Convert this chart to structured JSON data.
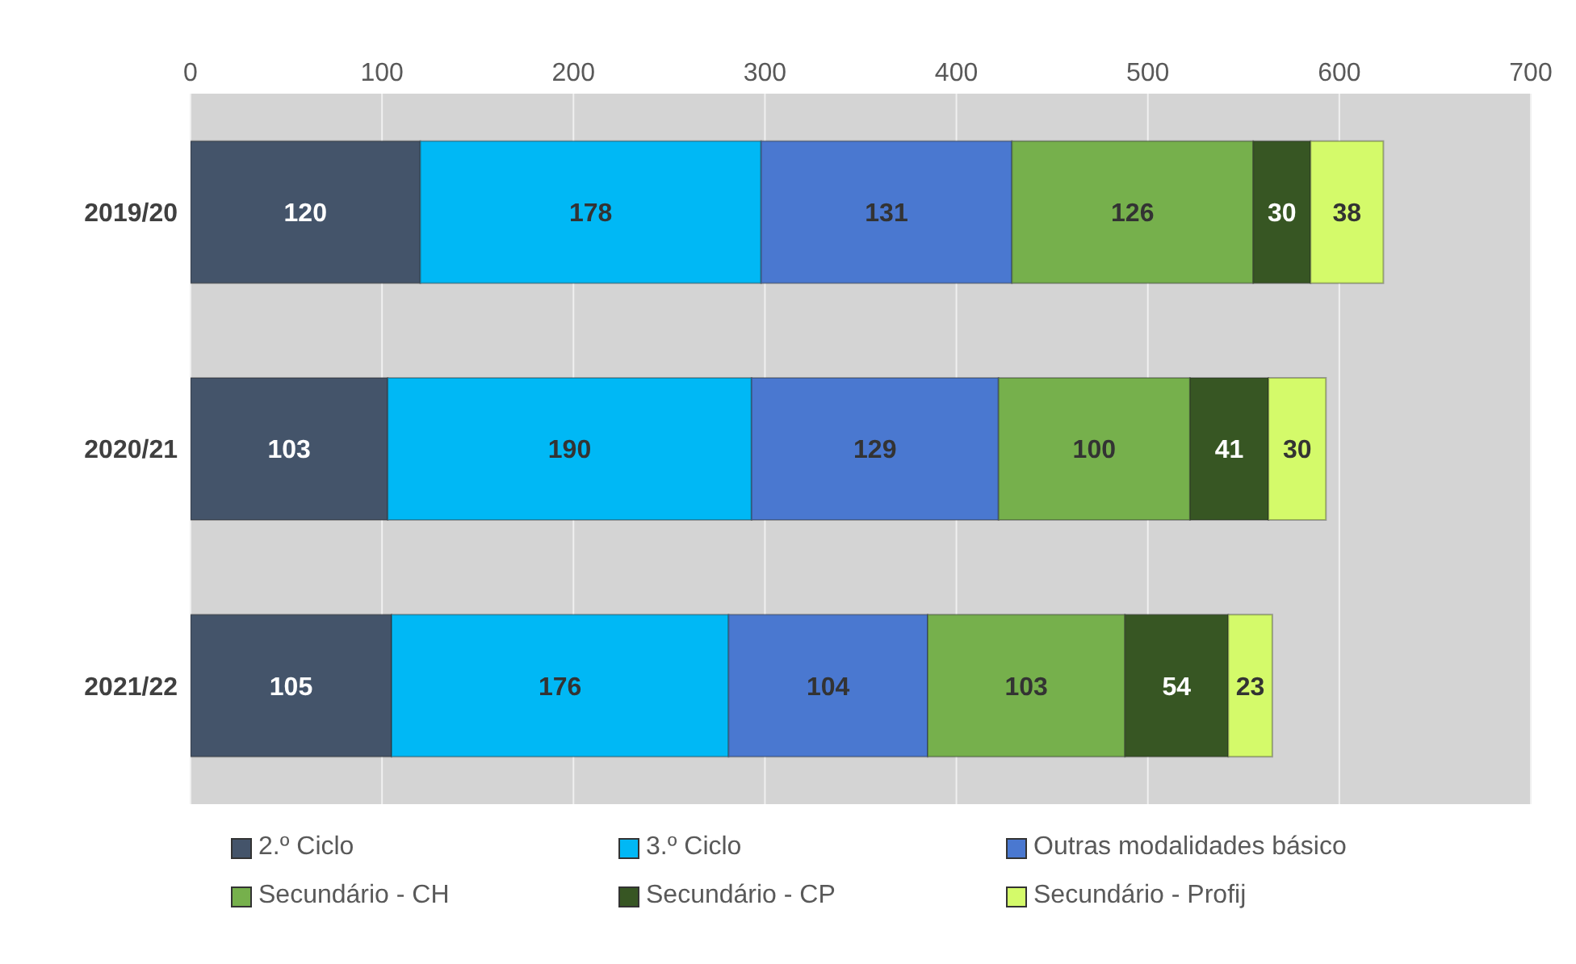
{
  "chart_data": {
    "type": "bar",
    "orientation": "horizontal",
    "stacked": true,
    "data_labels": true,
    "grid": "x",
    "legend": "bottom",
    "categories": [
      "2019/20",
      "2020/21",
      "2021/22"
    ],
    "xlim": [
      0,
      700
    ],
    "xticks": [
      0,
      100,
      200,
      300,
      400,
      500,
      600,
      700
    ],
    "series": [
      {
        "name": "2.º Ciclo",
        "color": "#44546a",
        "values": [
          120,
          103,
          105
        ]
      },
      {
        "name": "3.º Ciclo",
        "color": "#00b8f5",
        "values": [
          178,
          190,
          176
        ]
      },
      {
        "name": "Outras modalidades básico",
        "color": "#4a78d0",
        "values": [
          131,
          129,
          104
        ]
      },
      {
        "name": "Secundário - CH",
        "color": "#76b04c",
        "values": [
          126,
          100,
          103
        ]
      },
      {
        "name": "Secundário - CP",
        "color": "#375623",
        "values": [
          30,
          41,
          54
        ]
      },
      {
        "name": "Secundário - Profij",
        "color": "#d4fa6a",
        "values": [
          38,
          30,
          23
        ]
      }
    ]
  }
}
